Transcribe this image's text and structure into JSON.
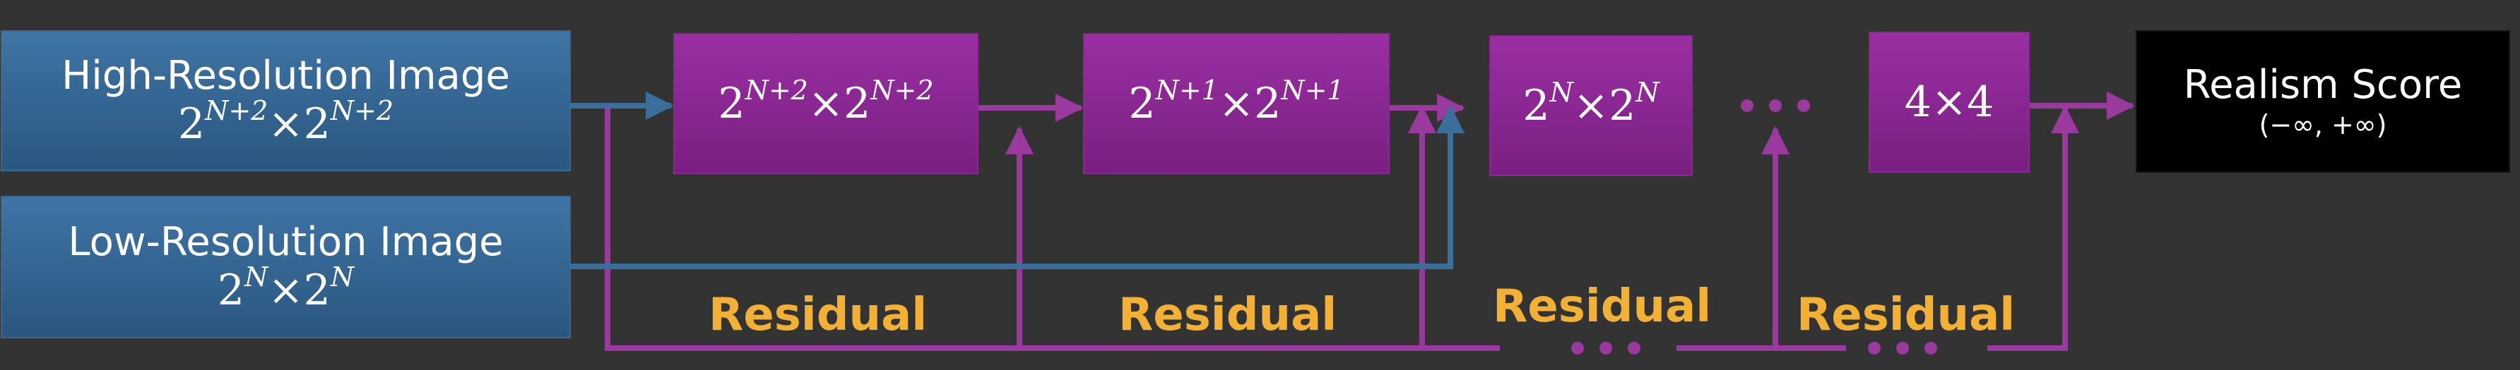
{
  "inputs": {
    "high_res": {
      "title": "High-Resolution Image",
      "base": "2",
      "exp": "N+2",
      "times": "×"
    },
    "low_res": {
      "title": "Low-Resolution Image",
      "base": "2",
      "exp": "N",
      "times": "×"
    }
  },
  "stages": [
    {
      "base": "2",
      "exp": "N+2",
      "times": "×"
    },
    {
      "base": "2",
      "exp": "N+1",
      "times": "×"
    },
    {
      "base": "2",
      "exp": "N",
      "times": "×"
    }
  ],
  "final_stage": {
    "label": "4×4"
  },
  "output": {
    "title": "Realism Score",
    "range": "(−∞, +∞)"
  },
  "residual_label": "Residual",
  "colors": {
    "background": "#333333",
    "input_blue": "#2f6491",
    "stage_purple": "#8a2792",
    "blue_arrow": "#3a6f9c",
    "purple_arrow": "#9a3a9f",
    "residual_text": "#f2b134"
  }
}
